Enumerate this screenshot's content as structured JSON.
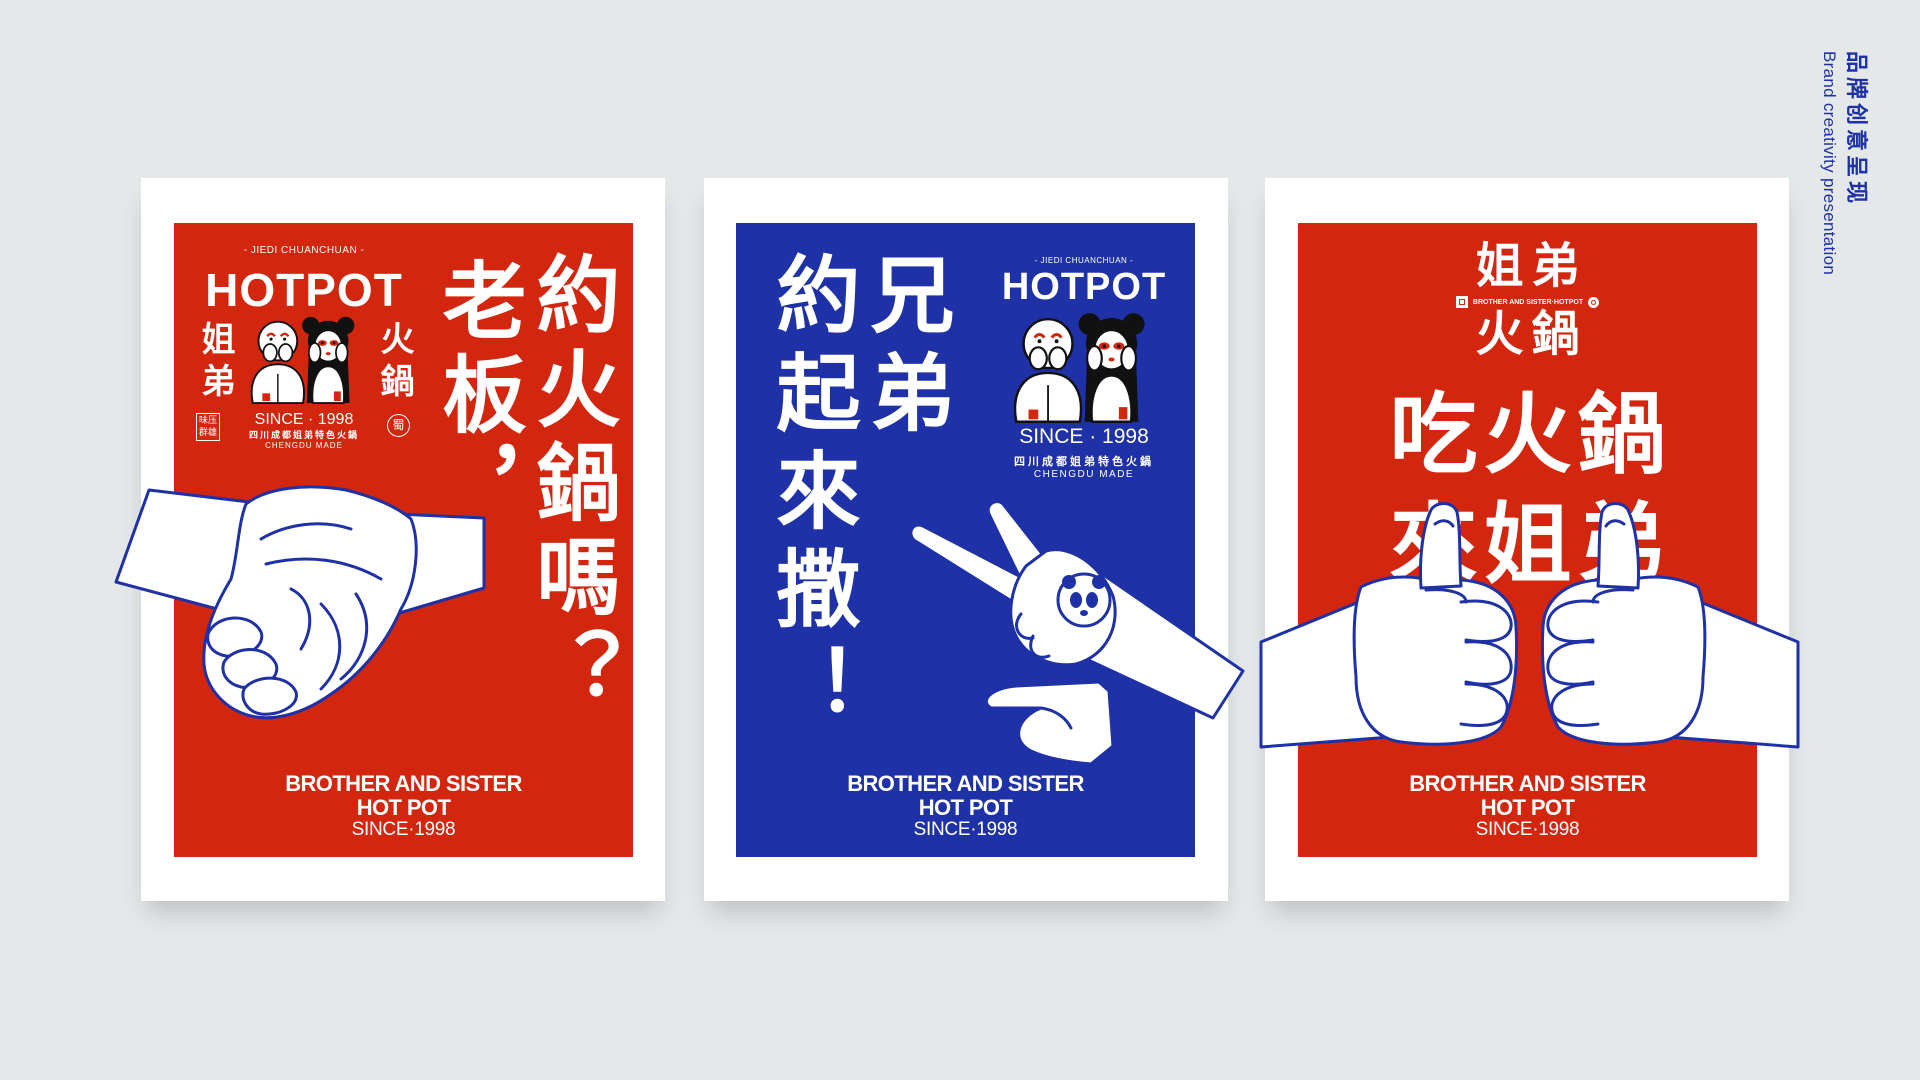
{
  "header": {
    "title_cn": "品牌创意呈现",
    "title_en": "Brand creativity presentation"
  },
  "colors": {
    "background": "#e4e8e9",
    "frame": "#ffffff",
    "red": "#d3260f",
    "blue": "#1f31a6"
  },
  "posters": [
    {
      "panel_color": "#d3260f",
      "logo": {
        "tagline": "- JIEDI CHUANCHUAN -",
        "wordmark": "HOTPOT",
        "side_left": "姐弟",
        "side_right": "火鍋",
        "since": "SINCE · 1998",
        "subtitle": "四川成都姐弟特色火鍋",
        "origin": "CHENGDU MADE",
        "stamp": "味压群雄",
        "seal": "蜀"
      },
      "headline": [
        "老板，",
        "約火鍋嗎？"
      ],
      "footer": {
        "line1": "BROTHER AND SISTER",
        "line2": "HOT POT",
        "line3": "SINCE·1998"
      },
      "illustration": "handshake-icon"
    },
    {
      "panel_color": "#1f31a6",
      "logo": {
        "tagline": "- JIEDI CHUANCHUAN -",
        "wordmark": "HOTPOT",
        "since": "SINCE · 1998",
        "subtitle": "四川成都姐弟特色火鍋",
        "origin": "CHENGDU MADE"
      },
      "headline": [
        "兄弟",
        "約起來撒！"
      ],
      "footer": {
        "line1": "BROTHER AND SISTER",
        "line2": "HOT POT",
        "line3": "SINCE·1998"
      },
      "illustration": "peace-sign-hand-icon"
    },
    {
      "panel_color": "#d3260f",
      "logo": {
        "top": "姐弟",
        "tagline": "BROTHER AND SISTER·HOTPOT",
        "bottom": "火鍋"
      },
      "headline": [
        "吃火鍋",
        "來姐弟"
      ],
      "footer": {
        "line1": "BROTHER AND SISTER",
        "line2": "HOT POT",
        "line3": "SINCE·1998"
      },
      "illustration": "thumbs-up-hands-icon"
    }
  ]
}
